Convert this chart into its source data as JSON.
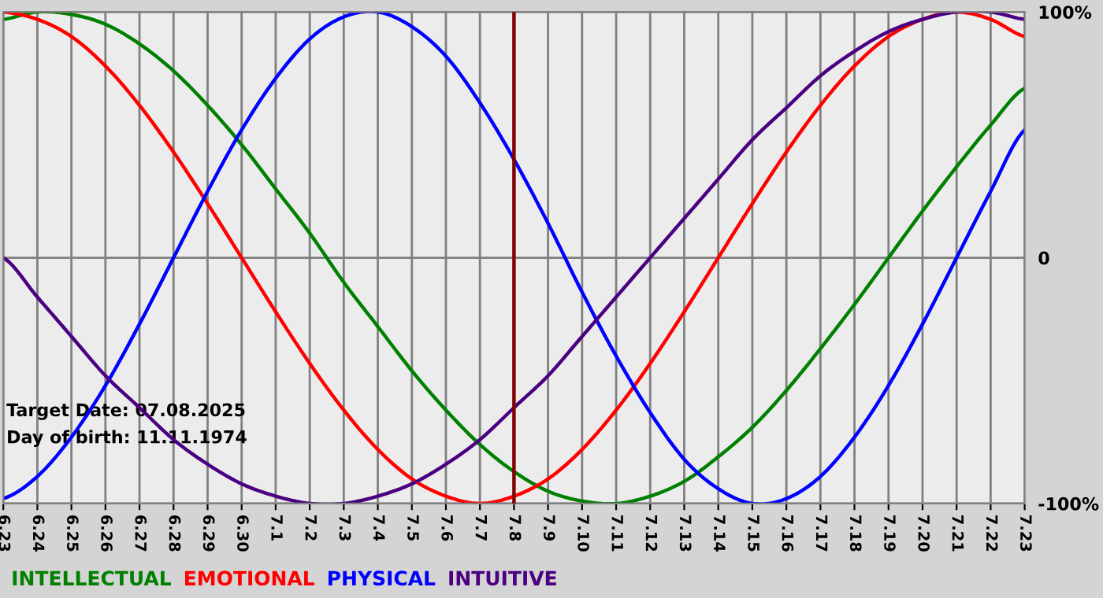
{
  "chart_data": {
    "type": "line",
    "categories": [
      "6.23",
      "6.24",
      "6.25",
      "6.26",
      "6.27",
      "6.28",
      "6.29",
      "6.30",
      "7.1",
      "7.2",
      "7.3",
      "7.4",
      "7.5",
      "7.6",
      "7.7",
      "7.8",
      "7.9",
      "7.10",
      "7.11",
      "7.12",
      "7.13",
      "7.14",
      "7.15",
      "7.16",
      "7.17",
      "7.18",
      "7.19",
      "7.20",
      "7.21",
      "7.22",
      "7.23"
    ],
    "series": [
      {
        "name": "INTELLECTUAL",
        "color": "#008000",
        "values": [
          97,
          100,
          99,
          95,
          87,
          76,
          62,
          46,
          28,
          10,
          -10,
          -28,
          -46,
          -62,
          -76,
          -87,
          -95,
          -99,
          -100,
          -97,
          -91,
          -81,
          -69,
          -54,
          -37,
          -19,
          0,
          19,
          37,
          54,
          69
        ]
      },
      {
        "name": "EMOTIONAL",
        "color": "#ff0000",
        "values": [
          100,
          97,
          90,
          78,
          62,
          43,
          22,
          0,
          -22,
          -43,
          -62,
          -78,
          -90,
          -97,
          -100,
          -97,
          -90,
          -78,
          -62,
          -43,
          -22,
          0,
          22,
          43,
          62,
          78,
          90,
          97,
          100,
          97,
          90
        ]
      },
      {
        "name": "PHYSICAL",
        "color": "#0000ff",
        "values": [
          -98,
          -89,
          -73,
          -52,
          -27,
          0,
          27,
          52,
          73,
          89,
          98,
          100,
          94,
          82,
          63,
          40,
          14,
          -14,
          -40,
          -63,
          -82,
          -94,
          -100,
          -98,
          -89,
          -73,
          -52,
          -27,
          0,
          27,
          52
        ]
      },
      {
        "name": "INTUITIVE",
        "color": "#4b0082",
        "values": [
          0,
          -16,
          -32,
          -48,
          -61,
          -74,
          -84,
          -92,
          -97,
          -100,
          -100,
          -97,
          -92,
          -84,
          -74,
          -61,
          -48,
          -32,
          -16,
          0,
          16,
          32,
          48,
          61,
          74,
          84,
          92,
          97,
          100,
          100,
          97
        ]
      }
    ],
    "ylim": [
      -100,
      100
    ],
    "yticks": [
      {
        "value": -100,
        "label": "-100%"
      },
      0,
      {
        "value": 100,
        "label": "100%"
      }
    ],
    "ref_lines": [
      {
        "axis": "x",
        "value": "7.8",
        "color": "#800000"
      }
    ],
    "annotations": [
      "Target Date: 07.08.2025",
      "Day of birth: 11.11.1974"
    ],
    "grid": true,
    "legend": "bottom left",
    "marker": "none",
    "line_style": "solid"
  }
}
